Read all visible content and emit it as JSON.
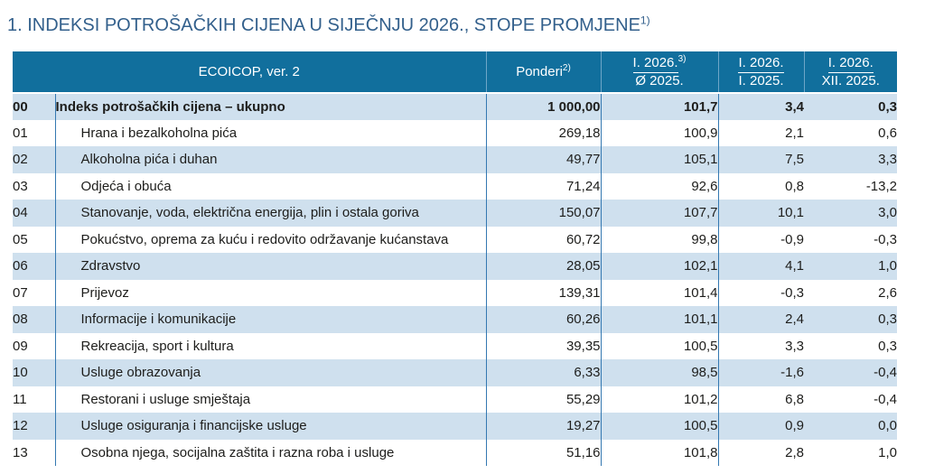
{
  "page": {
    "title": "1. INDEKSI POTROŠAČKIH CIJENA U SIJEČNJU 2026., STOPE PROMJENE",
    "title_footnote": "1)"
  },
  "table": {
    "header": {
      "classification": "ECOICOP, ver. 2",
      "weights_label": "Ponderi",
      "weights_footnote": "2)",
      "period_columns": [
        {
          "numerator": "I. 2026.",
          "numerator_footnote": "3)",
          "denominator": "Ø 2025."
        },
        {
          "numerator": "I. 2026.",
          "numerator_footnote": "",
          "denominator": "I. 2025."
        },
        {
          "numerator": "I. 2026.",
          "numerator_footnote": "",
          "denominator": "XII. 2025."
        }
      ]
    },
    "rows": [
      {
        "code": "00",
        "name": "Indeks potrošačkih cijena – ukupno",
        "weight": "1 000,00",
        "index_vs_avg_2025": "101,7",
        "rate_vs_jan_2025": "3,4",
        "rate_vs_dec_2025": "0,3",
        "emphasis": true
      },
      {
        "code": "01",
        "name": "Hrana i bezalkoholna pića",
        "weight": "269,18",
        "index_vs_avg_2025": "100,9",
        "rate_vs_jan_2025": "2,1",
        "rate_vs_dec_2025": "0,6",
        "emphasis": false
      },
      {
        "code": "02",
        "name": "Alkoholna pića i duhan",
        "weight": "49,77",
        "index_vs_avg_2025": "105,1",
        "rate_vs_jan_2025": "7,5",
        "rate_vs_dec_2025": "3,3",
        "emphasis": false
      },
      {
        "code": "03",
        "name": "Odjeća i obuća",
        "weight": "71,24",
        "index_vs_avg_2025": "92,6",
        "rate_vs_jan_2025": "0,8",
        "rate_vs_dec_2025": "-13,2",
        "emphasis": false
      },
      {
        "code": "04",
        "name": "Stanovanje, voda, električna energija, plin i ostala goriva",
        "weight": "150,07",
        "index_vs_avg_2025": "107,7",
        "rate_vs_jan_2025": "10,1",
        "rate_vs_dec_2025": "3,0",
        "emphasis": false
      },
      {
        "code": "05",
        "name": "Pokućstvo, oprema za kuću i redovito održavanje kućanstava",
        "weight": "60,72",
        "index_vs_avg_2025": "99,8",
        "rate_vs_jan_2025": "-0,9",
        "rate_vs_dec_2025": "-0,3",
        "emphasis": false
      },
      {
        "code": "06",
        "name": "Zdravstvo",
        "weight": "28,05",
        "index_vs_avg_2025": "102,1",
        "rate_vs_jan_2025": "4,1",
        "rate_vs_dec_2025": "1,0",
        "emphasis": false
      },
      {
        "code": "07",
        "name": "Prijevoz",
        "weight": "139,31",
        "index_vs_avg_2025": "101,4",
        "rate_vs_jan_2025": "-0,3",
        "rate_vs_dec_2025": "2,6",
        "emphasis": false
      },
      {
        "code": "08",
        "name": "Informacije i komunikacije",
        "weight": "60,26",
        "index_vs_avg_2025": "101,1",
        "rate_vs_jan_2025": "2,4",
        "rate_vs_dec_2025": "0,3",
        "emphasis": false
      },
      {
        "code": "09",
        "name": "Rekreacija, sport i kultura",
        "weight": "39,35",
        "index_vs_avg_2025": "100,5",
        "rate_vs_jan_2025": "3,3",
        "rate_vs_dec_2025": "0,3",
        "emphasis": false
      },
      {
        "code": "10",
        "name": "Usluge obrazovanja",
        "weight": "6,33",
        "index_vs_avg_2025": "98,5",
        "rate_vs_jan_2025": "-1,6",
        "rate_vs_dec_2025": "-0,4",
        "emphasis": false
      },
      {
        "code": "11",
        "name": "Restorani i usluge smještaja",
        "weight": "55,29",
        "index_vs_avg_2025": "101,2",
        "rate_vs_jan_2025": "6,8",
        "rate_vs_dec_2025": "-0,4",
        "emphasis": false
      },
      {
        "code": "12",
        "name": "Usluge osiguranja i financijske usluge",
        "weight": "19,27",
        "index_vs_avg_2025": "100,5",
        "rate_vs_jan_2025": "0,9",
        "rate_vs_dec_2025": "0,0",
        "emphasis": false
      },
      {
        "code": "13",
        "name": "Osobna njega, socijalna zaštita i razna roba i usluge",
        "weight": "51,16",
        "index_vs_avg_2025": "101,8",
        "rate_vs_jan_2025": "2,8",
        "rate_vs_dec_2025": "1,0",
        "emphasis": false
      }
    ]
  },
  "colors": {
    "header_bg": "#116f9d",
    "stripe_bg": "#cfe0ee",
    "grid_line": "#3478b1",
    "header_separator": "#6ea6c8",
    "title_text": "#33608c",
    "body_text": "#1d1d1b"
  }
}
